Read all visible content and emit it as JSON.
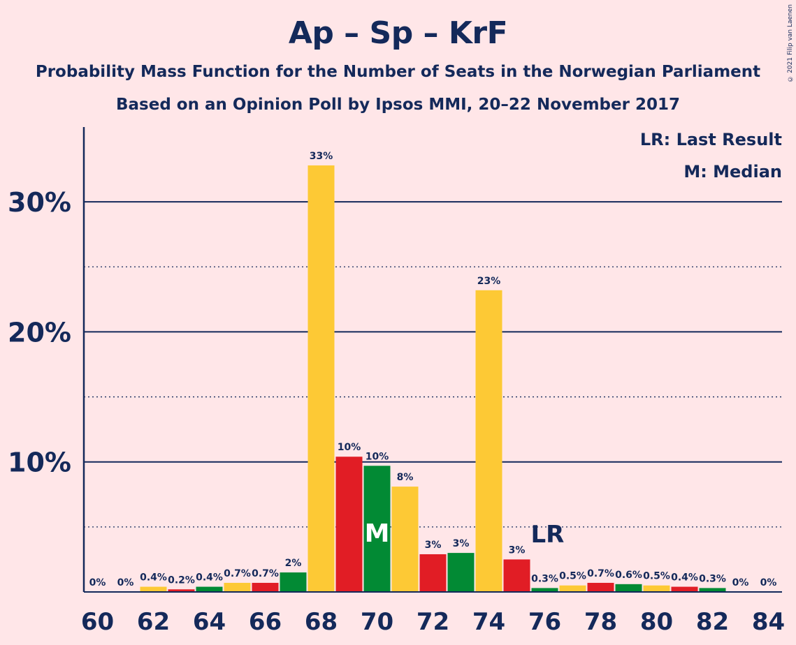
{
  "title": "Ap – Sp – KrF",
  "subtitle_1": "Probability Mass Function for the Number of Seats in the Norwegian Parliament",
  "subtitle_2": "Based on an Opinion Poll by Ipsos MMI, 20–22 November 2017",
  "copyright": "© 2021 Filip van Laenen",
  "legend": {
    "last_result": "LR: Last Result",
    "median": "M: Median"
  },
  "colors": {
    "background": "#ffe6e8",
    "text": "#14295a",
    "yellow": "#fdc935",
    "red": "#e11d25",
    "green": "#028a34"
  },
  "chart_data": {
    "type": "bar",
    "x": [
      60,
      61,
      62,
      63,
      64,
      65,
      66,
      67,
      68,
      69,
      70,
      71,
      72,
      73,
      74,
      75,
      76,
      77,
      78,
      79,
      80,
      81,
      82,
      83,
      84
    ],
    "values": [
      0,
      0,
      0.4,
      0.2,
      0.4,
      0.7,
      0.7,
      1.5,
      32.8,
      10.4,
      9.7,
      8.1,
      2.9,
      3.0,
      23.2,
      2.5,
      0.3,
      0.5,
      0.7,
      0.6,
      0.5,
      0.4,
      0.3,
      0,
      0
    ],
    "labels": [
      "0%",
      "0%",
      "0.4%",
      "0.2%",
      "0.4%",
      "0.7%",
      "0.7%",
      "2%",
      "33%",
      "10%",
      "10%",
      "8%",
      "3%",
      "3%",
      "23%",
      "3%",
      "0.3%",
      "0.5%",
      "0.7%",
      "0.6%",
      "0.5%",
      "0.4%",
      "0.3%",
      "0%",
      "0%"
    ],
    "bar_colors": [
      "yellow",
      "red",
      "yellow",
      "red",
      "green",
      "yellow",
      "red",
      "green",
      "yellow",
      "red",
      "green",
      "yellow",
      "red",
      "green",
      "yellow",
      "red",
      "green",
      "yellow",
      "red",
      "green",
      "yellow",
      "red",
      "green",
      "yellow",
      "red"
    ],
    "x_tick_labels": [
      "60",
      "62",
      "64",
      "66",
      "68",
      "70",
      "72",
      "74",
      "76",
      "78",
      "80",
      "82",
      "84"
    ],
    "y_tick_labels": [
      "10%",
      "20%",
      "30%"
    ],
    "y_solid_gridlines": [
      10,
      20,
      30
    ],
    "y_dotted_gridlines": [
      5,
      15,
      25
    ],
    "ylim": [
      0,
      35.5
    ],
    "median_seat": 70,
    "median_label": "M",
    "last_result_seat": 76,
    "last_result_label": "LR"
  }
}
